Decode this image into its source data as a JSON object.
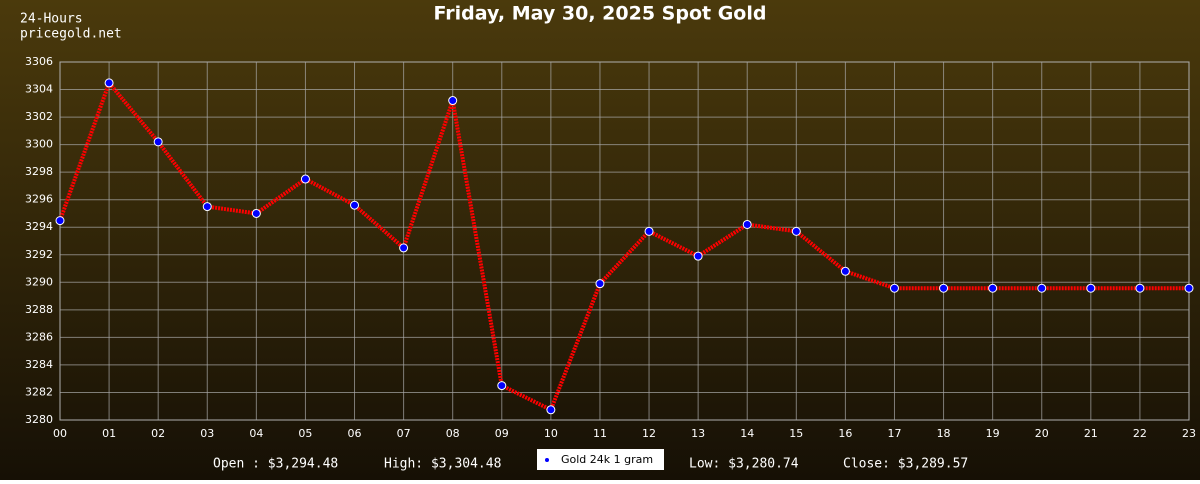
{
  "chart_data": {
    "type": "line",
    "title": "Friday, May 30, 2025 Spot Gold",
    "corner_text": [
      "24-Hours",
      "pricegold.net"
    ],
    "categories": [
      "00",
      "01",
      "02",
      "03",
      "04",
      "05",
      "06",
      "07",
      "08",
      "09",
      "10",
      "11",
      "12",
      "13",
      "14",
      "15",
      "16",
      "17",
      "18",
      "19",
      "20",
      "21",
      "22",
      "23"
    ],
    "series": [
      {
        "name": "Gold 24k 1 gram",
        "color": "#ff0000",
        "marker_color": "#0000ff",
        "values": [
          3294.48,
          3304.48,
          3300.2,
          3295.5,
          3295.0,
          3297.5,
          3295.6,
          3292.5,
          3303.2,
          3282.5,
          3280.74,
          3289.9,
          3293.7,
          3291.9,
          3294.2,
          3293.7,
          3290.8,
          3289.57,
          3289.57,
          3289.57,
          3289.57,
          3289.57,
          3289.57,
          3289.57
        ]
      }
    ],
    "ylim": [
      3280,
      3306
    ],
    "yticks": [
      3280,
      3282,
      3284,
      3286,
      3288,
      3290,
      3292,
      3294,
      3296,
      3298,
      3300,
      3302,
      3304,
      3306
    ],
    "grid": true,
    "stats_left": [
      "Open : $3,294.48",
      "High: $3,304.48"
    ],
    "stats_right": [
      "Low: $3,280.74",
      "Close: $3,289.57"
    ]
  }
}
